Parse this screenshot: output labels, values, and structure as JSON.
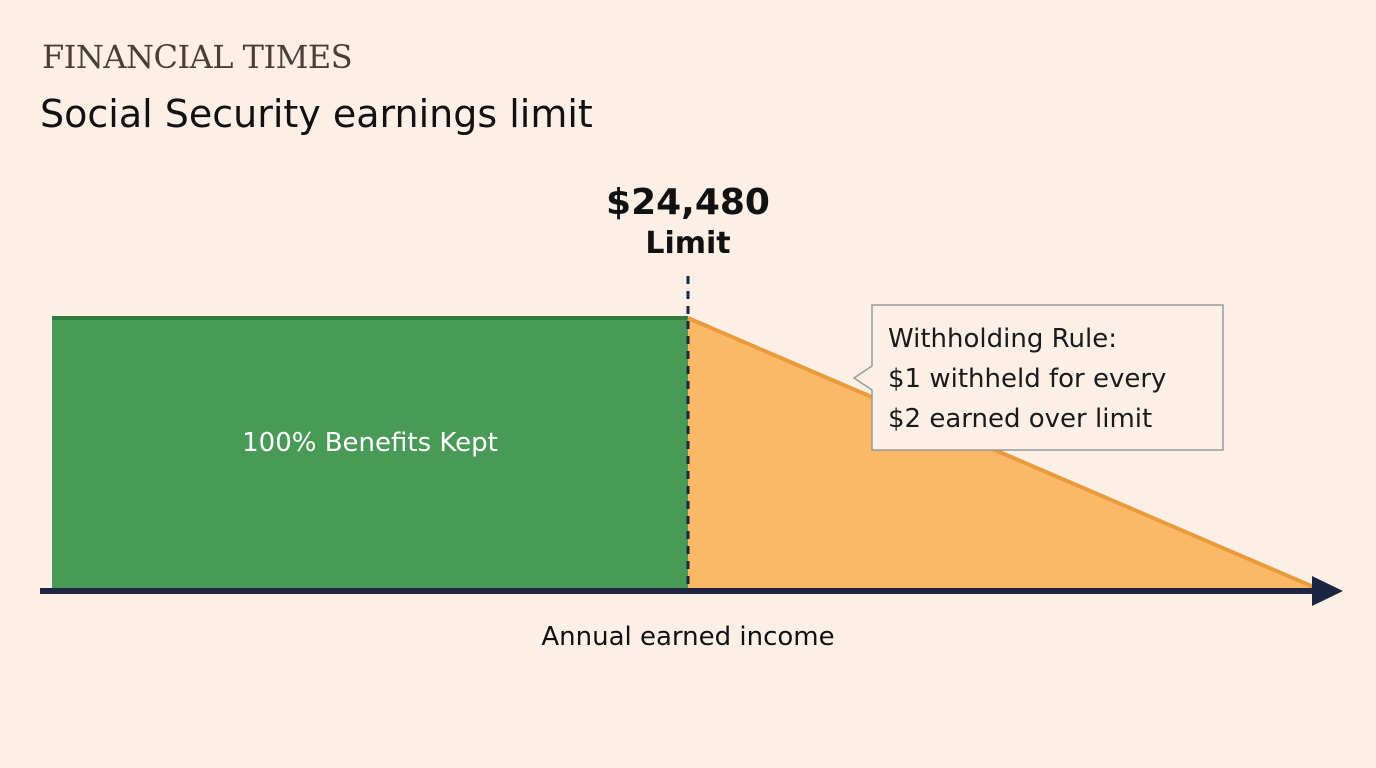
{
  "header": {
    "brand": "FINANCIAL TIMES",
    "title": "Social Security earnings limit"
  },
  "limit": {
    "amount": "$24,480",
    "label": "Limit"
  },
  "regions": {
    "kept_label": "100% Benefits Kept"
  },
  "callout": {
    "lines": [
      "Withholding Rule:",
      "$1 withheld for every",
      "$2 earned over limit"
    ]
  },
  "axis": {
    "x_label": "Annual earned income"
  },
  "colors": {
    "background": "#fcf0e6",
    "kept_fill": "#4a9a57",
    "kept_edge": "#2f7a3d",
    "withheld_fill": "#fbb867",
    "withheld_edge": "#eb9a3c",
    "axis": "#1c2541",
    "callout_border": "#9a9a9a"
  }
}
